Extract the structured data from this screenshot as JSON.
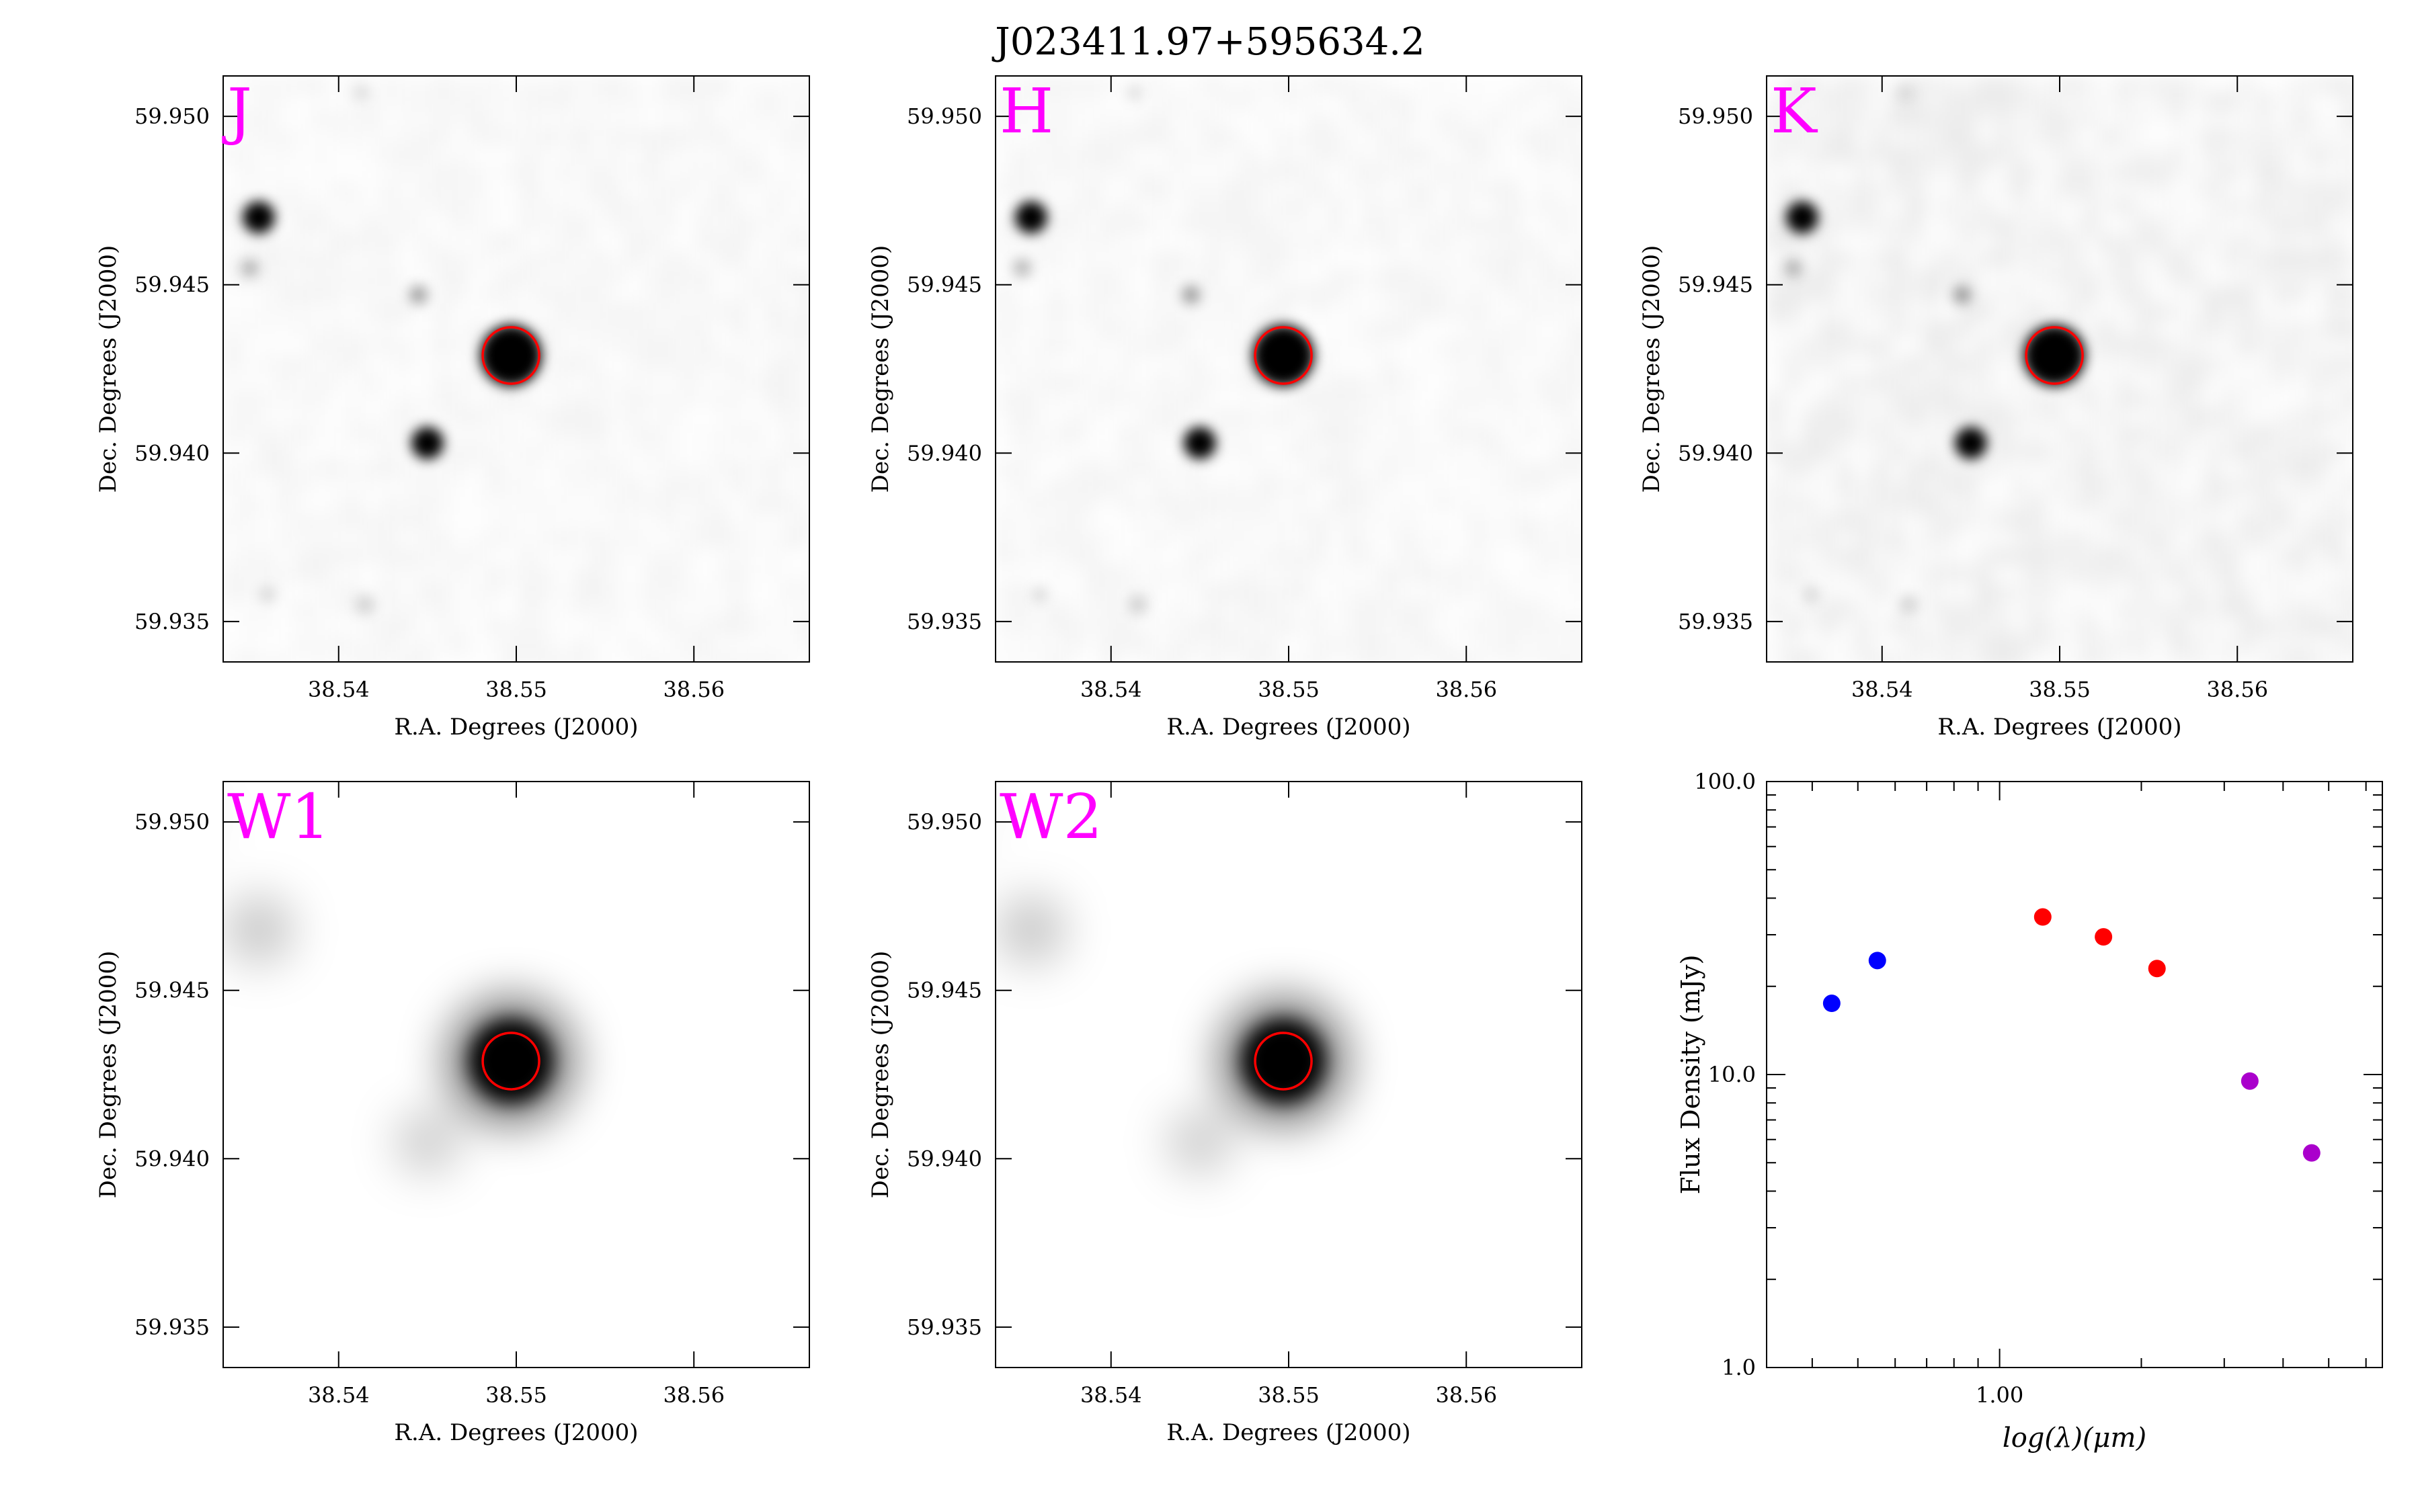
{
  "figure": {
    "title": "J023411.97+595634.2"
  },
  "cutouts": [
    {
      "band": "J",
      "xlabel": "R.A. Degrees (J2000)",
      "ylabel": "Dec. Degrees (J2000)",
      "xticks": [
        38.54,
        38.55,
        38.56
      ],
      "xtick_labels": [
        "38.54",
        "38.55",
        "38.56"
      ],
      "yticks": [
        59.935,
        59.94,
        59.945,
        59.95
      ],
      "ytick_labels": [
        "59.935",
        "59.940",
        "59.945",
        "59.950"
      ]
    },
    {
      "band": "H",
      "xlabel": "R.A. Degrees (J2000)",
      "ylabel": "Dec. Degrees (J2000)",
      "xticks": [
        38.54,
        38.55,
        38.56
      ],
      "xtick_labels": [
        "38.54",
        "38.55",
        "38.56"
      ],
      "yticks": [
        59.935,
        59.94,
        59.945,
        59.95
      ],
      "ytick_labels": [
        "59.935",
        "59.940",
        "59.945",
        "59.950"
      ]
    },
    {
      "band": "K",
      "xlabel": "R.A. Degrees (J2000)",
      "ylabel": "Dec. Degrees (J2000)",
      "xticks": [
        38.54,
        38.55,
        38.56
      ],
      "xtick_labels": [
        "38.54",
        "38.55",
        "38.56"
      ],
      "yticks": [
        59.935,
        59.94,
        59.945,
        59.95
      ],
      "ytick_labels": [
        "59.935",
        "59.940",
        "59.945",
        "59.950"
      ]
    },
    {
      "band": "W1",
      "xlabel": "R.A. Degrees (J2000)",
      "ylabel": "Dec. Degrees (J2000)",
      "xticks": [
        38.54,
        38.55,
        38.56
      ],
      "xtick_labels": [
        "38.54",
        "38.55",
        "38.56"
      ],
      "yticks": [
        59.935,
        59.94,
        59.945,
        59.95
      ],
      "ytick_labels": [
        "59.935",
        "59.940",
        "59.945",
        "59.950"
      ]
    },
    {
      "band": "W2",
      "xlabel": "R.A. Degrees (J2000)",
      "ylabel": "Dec. Degrees (J2000)",
      "xticks": [
        38.54,
        38.55,
        38.56
      ],
      "xtick_labels": [
        "38.54",
        "38.55",
        "38.56"
      ],
      "yticks": [
        59.935,
        59.94,
        59.945,
        59.95
      ],
      "ytick_labels": [
        "59.935",
        "59.940",
        "59.945",
        "59.950"
      ]
    }
  ],
  "colors": {
    "band_label": "#ff00ff",
    "target_circle": "#ff0000",
    "sed_blue": "#0000ff",
    "sed_red": "#ff0000",
    "sed_purple": "#aa00cc"
  },
  "chart_data": {
    "type": "scatter",
    "xlabel": "log(λ)(μm)",
    "ylabel": "Flux Density (mJy)",
    "xscale": "log",
    "yscale": "log",
    "xlim": [
      0.32,
      6.5
    ],
    "ylim": [
      1.0,
      100.0
    ],
    "xtick_labels": [
      "1.00"
    ],
    "ytick_labels": [
      "1.0",
      "10.0",
      "100.0"
    ],
    "grid": false,
    "points": [
      {
        "x": 0.44,
        "y": 17.5,
        "color": "#0000ff"
      },
      {
        "x": 0.55,
        "y": 24.5,
        "color": "#0000ff"
      },
      {
        "x": 1.235,
        "y": 34.5,
        "color": "#ff0000"
      },
      {
        "x": 1.662,
        "y": 29.5,
        "color": "#ff0000"
      },
      {
        "x": 2.159,
        "y": 23.0,
        "color": "#ff0000"
      },
      {
        "x": 3.4,
        "y": 9.5,
        "color": "#aa00cc"
      },
      {
        "x": 4.6,
        "y": 5.4,
        "color": "#aa00cc"
      }
    ]
  }
}
